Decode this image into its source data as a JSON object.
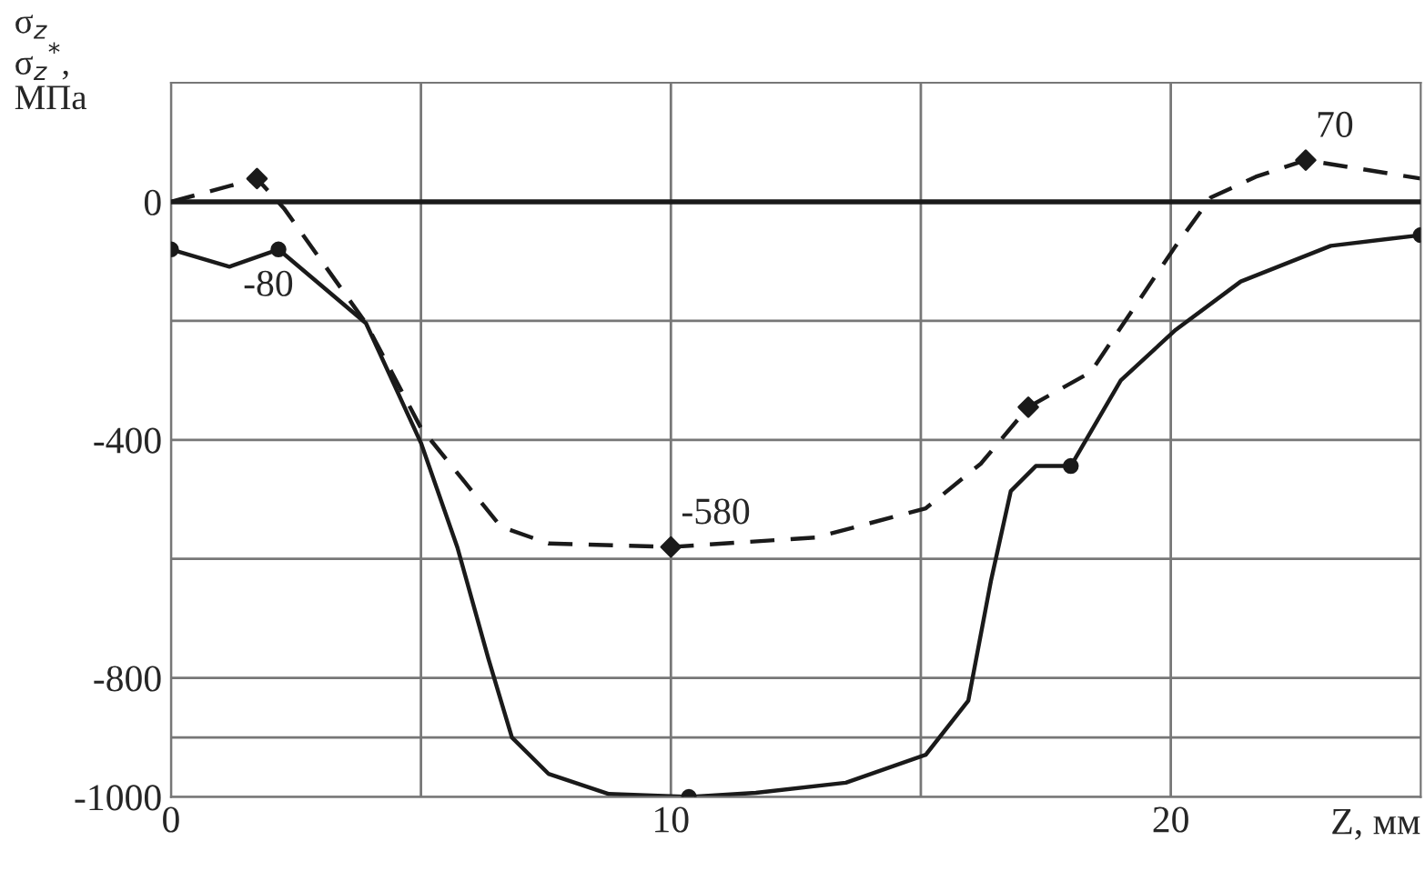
{
  "chart_data": {
    "type": "line",
    "ylabel": "σ$_{z}$\nσ$_{z}$$^{*}$,\nМПа",
    "xlabel": "Z, мм",
    "xlim": [
      0,
      25
    ],
    "ylim": [
      -1000,
      200
    ],
    "xticks": [
      0,
      {
        "value": 5,
        "label": null
      },
      10,
      {
        "value": 15,
        "label": null
      },
      20
    ],
    "yticks": [
      0,
      {
        "value": -200,
        "label": null
      },
      -400,
      {
        "value": -600,
        "label": null
      },
      -800,
      {
        "value": -900,
        "label": null
      },
      -1000
    ],
    "grid": true,
    "series": [
      {
        "color": "#1a1a1a",
        "line_style": "solid",
        "x": [
          0,
          1.17,
          2.15,
          3.9,
          5.0,
          5.73,
          6.35,
          6.82,
          7.55,
          8.76,
          10.36,
          11.7,
          13.5,
          15.1,
          15.95,
          16.4,
          16.8,
          17.3,
          18.0,
          19.0,
          20.1,
          21.4,
          23.2,
          25
        ],
        "values": [
          -80,
          -109,
          -80,
          -204,
          -405,
          -581,
          -768,
          -900,
          -961,
          -995,
          -1000,
          -993,
          -976,
          -929,
          -838,
          -638,
          -486,
          -444,
          -444,
          -300,
          -215,
          -134,
          -74,
          -56
        ]
      },
      {
        "color": "#1a1a1a",
        "line_style": "dashed",
        "x": [
          0,
          1.72,
          2.26,
          3.9,
          5.0,
          6.6,
          7.55,
          10.0,
          12.9,
          15.1,
          16.2,
          17.15,
          18.4,
          20.1,
          20.8,
          21.7,
          22.7,
          25
        ],
        "values": [
          0,
          39,
          -11,
          -204,
          -380,
          -546,
          -574,
          -580,
          -564,
          -515,
          -440,
          -345,
          -286,
          -74,
          7,
          42,
          70,
          39
        ]
      },
      {
        "type": "scatter",
        "color": "#1a1a1a",
        "marker": "circle",
        "x": [
          0,
          2.15,
          10.36,
          18.0,
          25
        ],
        "values": [
          -80,
          -80,
          -1000,
          -444,
          -56
        ]
      },
      {
        "type": "scatter",
        "color": "#1a1a1a",
        "marker": "diamond",
        "x": [
          1.72,
          10.0,
          17.15,
          22.7
        ],
        "values": [
          39,
          -580,
          -345,
          70
        ]
      }
    ],
    "ref_lines": [
      {
        "axis": "y",
        "value": 0,
        "color": "#1a1a1a",
        "line_style": "solid"
      }
    ],
    "annotations": [
      {
        "text": "-80",
        "x": 2.15,
        "y": -80
      },
      {
        "text": "-580",
        "x": 10.0,
        "y": -580
      },
      {
        "text": "70",
        "x": 22.7,
        "y": 70
      }
    ]
  }
}
